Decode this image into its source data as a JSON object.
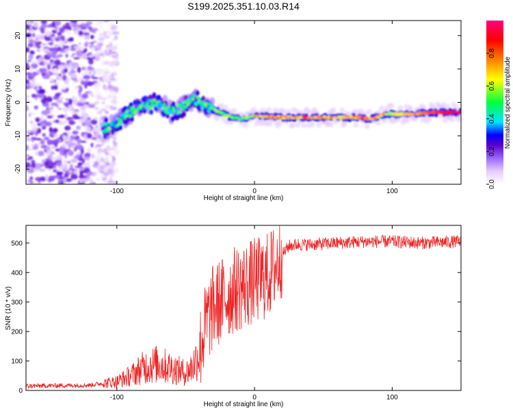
{
  "title": "S199.2025.351.10.03.R14",
  "chart_data": [
    {
      "type": "heatmap",
      "title": "S199.2025.351.10.03.R14",
      "xlabel": "Height of straight line (km)",
      "ylabel": "Frequency (Hz)",
      "xlim": [
        -166,
        150
      ],
      "ylim": [
        -24.5,
        24.5
      ],
      "xticks": [
        -100,
        0,
        100
      ],
      "yticks": [
        -20,
        -10,
        0,
        10,
        20
      ],
      "colorbar": {
        "label": "Normalized spectral amplitude",
        "range": [
          0,
          1
        ],
        "ticks": [
          "0.0",
          "0.2",
          "0.4",
          "0.6",
          "0.8"
        ],
        "colors": [
          "#ffffff",
          "#e6ccff",
          "#9966ff",
          "#5a00cc",
          "#0000ff",
          "#00e5ff",
          "#00ff40",
          "#ffff00",
          "#ff8000",
          "#ff0000",
          "#ff0080"
        ]
      },
      "ridge": {
        "description": "dominant frequency ridge, Hz vs km",
        "x": [
          -110,
          -100,
          -90,
          -80,
          -70,
          -60,
          -50,
          -45,
          -40,
          -30,
          -20,
          -10,
          0,
          20,
          40,
          60,
          75,
          85,
          95,
          110,
          130,
          148
        ],
        "y": [
          -8,
          -6,
          -3,
          -1,
          0,
          -3,
          -1,
          1,
          0,
          -2,
          -4,
          -5,
          -4,
          -4.5,
          -4.5,
          -4.5,
          -4.5,
          -5,
          -3.5,
          -3.5,
          -3,
          -3
        ]
      },
      "noise_region_km": [
        -166,
        -110
      ]
    },
    {
      "type": "line",
      "xlabel": "Height of straight line (km)",
      "ylabel": "SNR (10 * v/v)",
      "xlim": [
        -166,
        150
      ],
      "ylim": [
        0,
        560
      ],
      "xticks": [
        -100,
        0,
        100
      ],
      "yticks": [
        0,
        100,
        200,
        300,
        400,
        500
      ],
      "color": "#ee2222",
      "series": [
        {
          "name": "SNR envelope",
          "x": [
            -166,
            -120,
            -100,
            -90,
            -80,
            -70,
            -60,
            -50,
            -45,
            -40,
            -35,
            -30,
            -25,
            -20,
            -15,
            -10,
            -5,
            0,
            5,
            10,
            15,
            20,
            25,
            30,
            40,
            60,
            80,
            100,
            120,
            150
          ],
          "y": [
            15,
            18,
            30,
            50,
            80,
            90,
            75,
            60,
            80,
            130,
            230,
            280,
            300,
            320,
            340,
            350,
            360,
            370,
            380,
            390,
            420,
            460,
            490,
            495,
            495,
            500,
            505,
            505,
            500,
            505
          ]
        }
      ]
    }
  ]
}
